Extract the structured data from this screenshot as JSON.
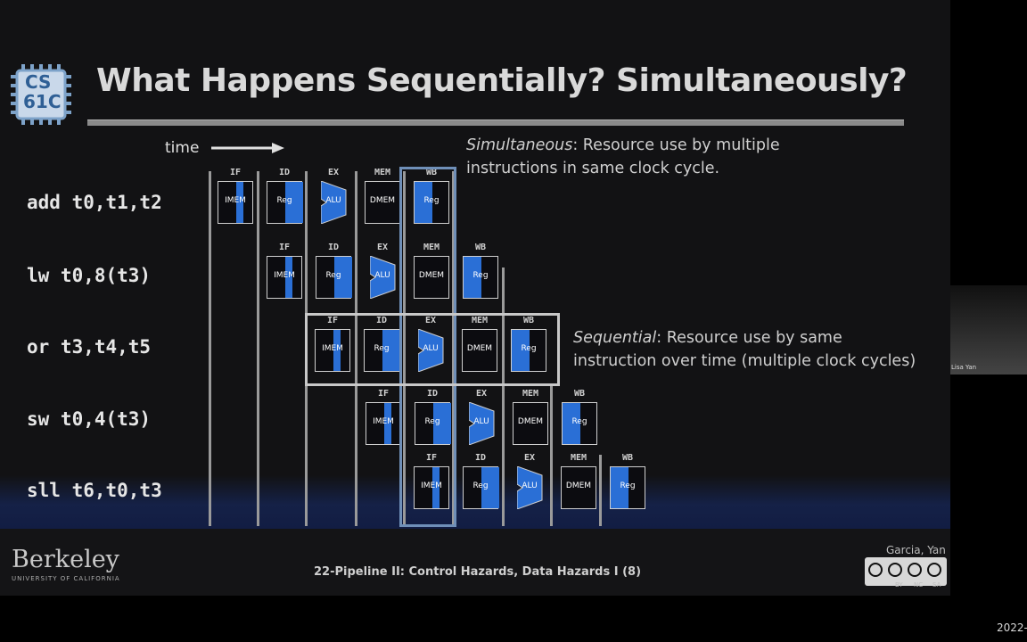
{
  "title": "What Happens Sequentially? Simultaneously?",
  "logo": {
    "line1": "CS",
    "line2": "61C",
    "icon": "chip-icon"
  },
  "time_label": "time",
  "instructions": [
    {
      "text": "add t0,t1,t2"
    },
    {
      "text": "lw t0,8(t3)"
    },
    {
      "text": "or t3,t4,t5"
    },
    {
      "text": "sw t0,4(t3)"
    },
    {
      "text": "sll t6,t0,t3"
    }
  ],
  "stage_headers": [
    "IF",
    "ID",
    "EX",
    "MEM",
    "WB"
  ],
  "stage_labels": {
    "imem": "IMEM",
    "reg": "Reg",
    "alu": "ALU",
    "dmem": "DMEM"
  },
  "notes": {
    "simultaneous_term": "Simultaneous",
    "simultaneous_line1": ": Resource use by multiple",
    "simultaneous_line2": "instructions in same clock cycle.",
    "sequential_term": "Sequential",
    "sequential_line1": ": Resource use by same",
    "sequential_line2": "instruction over time (multiple clock cycles)"
  },
  "footer": {
    "university": "Berkeley",
    "university_sub": "UNIVERSITY OF CALIFORNIA",
    "lecture": "22-Pipeline II: Control Hazards, Data Hazards I (8)",
    "authors": "Garcia, Yan",
    "license": [
      "BY",
      "NC",
      "SA"
    ]
  },
  "camera": {
    "name": "Lisa Yan"
  },
  "corner_text": "2022-",
  "colors": {
    "accent_blue": "#2a6fd6",
    "background": "#121214",
    "text": "#d9d9d9"
  }
}
